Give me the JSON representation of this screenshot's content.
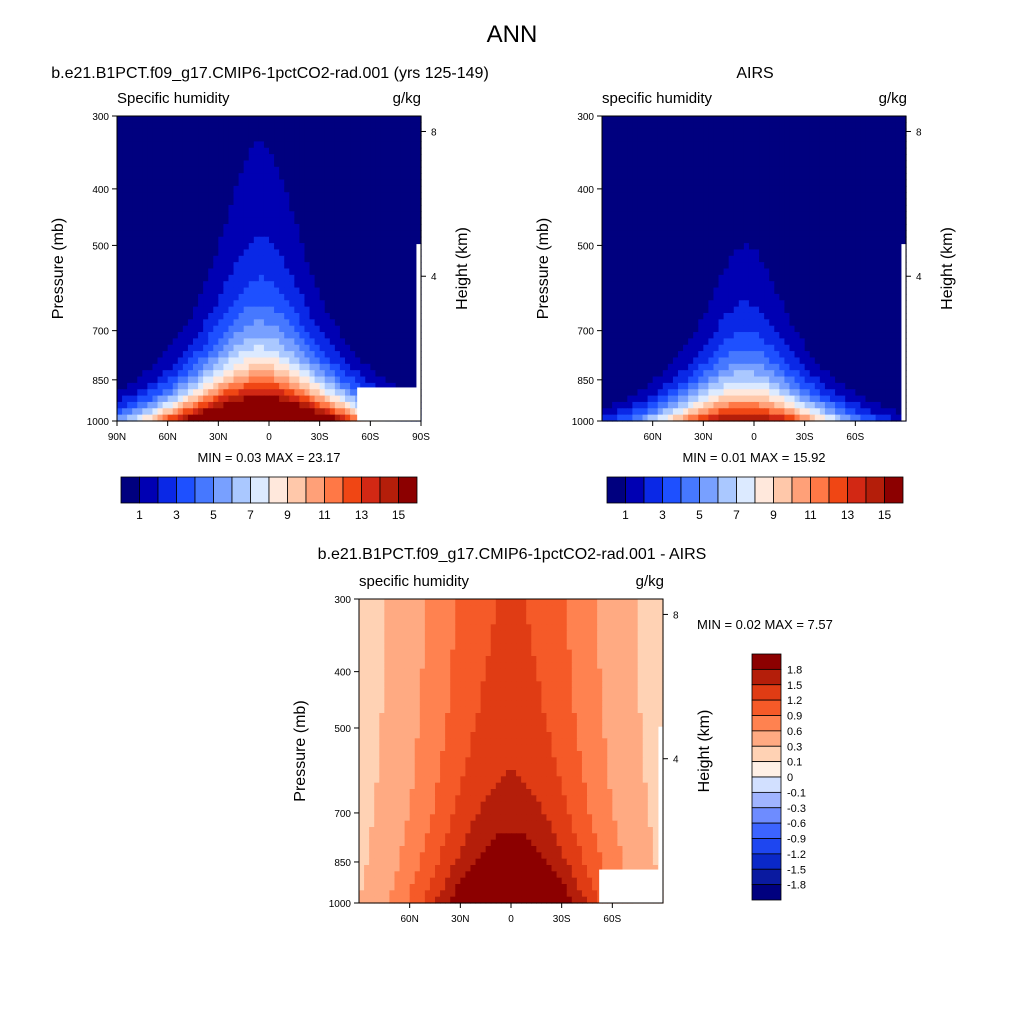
{
  "page_title": "ANN",
  "palette": {
    "blue_red_16": [
      "#00007f",
      "#0000b3",
      "#0a28e6",
      "#1e50ff",
      "#4678ff",
      "#78a0ff",
      "#aac8ff",
      "#dceaff",
      "#ffe8dc",
      "#ffc8aa",
      "#ffa078",
      "#ff7846",
      "#f04614",
      "#d22814",
      "#b41e0a",
      "#8c0000"
    ],
    "diff_16": [
      "#00007f",
      "#0a1aa0",
      "#0a28c8",
      "#1e46f0",
      "#3c64ff",
      "#6e8cff",
      "#a0b4ff",
      "#d2e0ff",
      "#fff0e6",
      "#ffd2b4",
      "#ffaa82",
      "#ff8250",
      "#f55a28",
      "#e03c14",
      "#b41e0a",
      "#8c0000"
    ]
  },
  "chart_data": [
    {
      "type": "heatmap",
      "title": "b.e21.B1PCT.f09_g17.CMIP6-1pctCO2-rad.001 (yrs 125-149)",
      "field_label": "Specific humidity",
      "units": "g/kg",
      "ylabel": "Pressure (mb)",
      "y2label": "Height (km)",
      "x_ticks": [
        "90N",
        "60N",
        "30N",
        "0",
        "30S",
        "60S",
        "90S"
      ],
      "x_tick_lats": [
        90,
        60,
        30,
        0,
        -30,
        -60,
        -90
      ],
      "xlim": [
        90,
        -90
      ],
      "y_ticks": [
        300,
        400,
        500,
        700,
        850,
        1000
      ],
      "ylim": [
        300,
        1000
      ],
      "y_log": true,
      "y2_ticks": [
        8,
        4
      ],
      "stats_text": "MIN =   0.03   MAX =  23.17",
      "stats": {
        "min": 0.03,
        "max": 23.17
      },
      "colorbar": {
        "orientation": "horizontal",
        "labels": [
          "1",
          "3",
          "5",
          "7",
          "9",
          "11",
          "13",
          "15"
        ],
        "levels": [
          1,
          2,
          3,
          4,
          5,
          6,
          7,
          8,
          9,
          10,
          11,
          12,
          13,
          14,
          15
        ]
      },
      "model": {
        "peak": 23.17,
        "center_lat": 5,
        "lat_width": 30,
        "p_scale": 210,
        "floor": 0.03
      }
    },
    {
      "type": "heatmap",
      "title": "AIRS",
      "field_label": "specific humidity",
      "units": "g/kg",
      "ylabel": "Pressure (mb)",
      "y2label": "Height (km)",
      "x_ticks": [
        "60N",
        "30N",
        "0",
        "30S",
        "60S"
      ],
      "x_tick_lats": [
        60,
        30,
        0,
        -30,
        -60
      ],
      "xlim": [
        90,
        -90
      ],
      "y_ticks": [
        300,
        400,
        500,
        700,
        850,
        1000
      ],
      "ylim": [
        300,
        1000
      ],
      "y_log": true,
      "y2_ticks": [
        8,
        4
      ],
      "stats_text": "MIN =   0.01   MAX =  15.92",
      "stats": {
        "min": 0.01,
        "max": 15.92
      },
      "colorbar": {
        "orientation": "horizontal",
        "labels": [
          "1",
          "3",
          "5",
          "7",
          "9",
          "11",
          "13",
          "15"
        ],
        "levels": [
          1,
          2,
          3,
          4,
          5,
          6,
          7,
          8,
          9,
          10,
          11,
          12,
          13,
          14,
          15
        ]
      },
      "model": {
        "peak": 15.92,
        "center_lat": 5,
        "lat_width": 26,
        "p_scale": 180,
        "floor": 0.01
      }
    },
    {
      "type": "heatmap",
      "title": "b.e21.B1PCT.f09_g17.CMIP6-1pctCO2-rad.001 - AIRS",
      "field_label": "specific humidity",
      "units": "g/kg",
      "ylabel": "Pressure (mb)",
      "y2label": "Height (km)",
      "x_ticks": [
        "60N",
        "30N",
        "0",
        "30S",
        "60S"
      ],
      "x_tick_lats": [
        60,
        30,
        0,
        -30,
        -60
      ],
      "xlim": [
        90,
        -90
      ],
      "y_ticks": [
        300,
        400,
        500,
        700,
        850,
        1000
      ],
      "ylim": [
        300,
        1000
      ],
      "y_log": true,
      "y2_ticks": [
        8,
        4
      ],
      "stats_text": "MIN =   0.02   MAX =   7.57",
      "stats": {
        "min": 0.02,
        "max": 7.57
      },
      "colorbar": {
        "orientation": "vertical",
        "labels": [
          "1.8",
          "1.5",
          "1.2",
          "0.9",
          "0.6",
          "0.3",
          "0.1",
          "0",
          "-0.1",
          "-0.3",
          "-0.6",
          "-0.9",
          "-1.2",
          "-1.5",
          "-1.8"
        ],
        "levels": [
          -1.8,
          -1.5,
          -1.2,
          -0.9,
          -0.6,
          -0.3,
          -0.1,
          0,
          0.1,
          0.3,
          0.6,
          0.9,
          1.2,
          1.5,
          1.8
        ]
      },
      "model": {
        "peak": 7.57,
        "center_lat": 0,
        "lat_width": 40,
        "p_scale": 300,
        "floor": 0.02
      }
    }
  ]
}
